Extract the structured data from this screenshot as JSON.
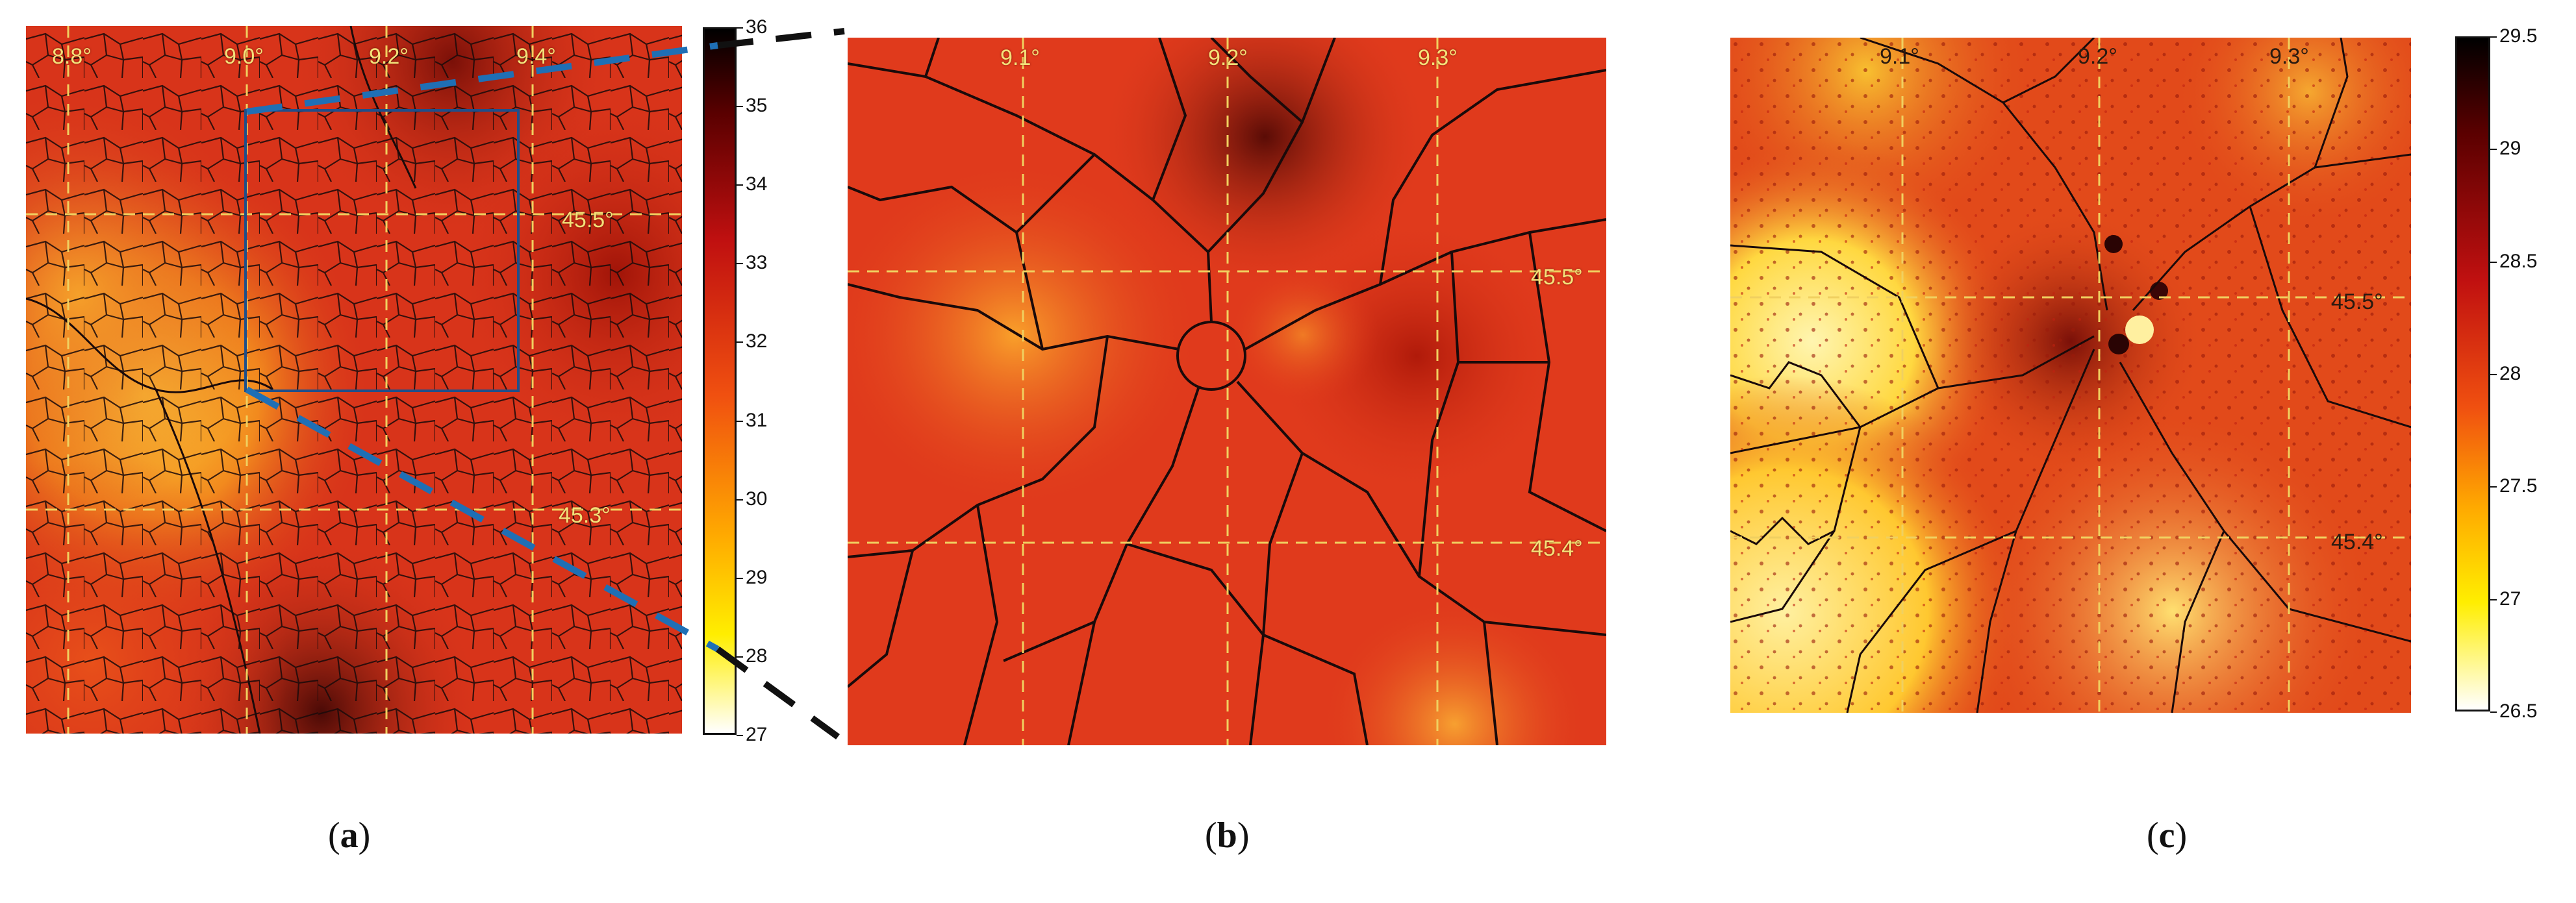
{
  "panels": {
    "a": {
      "caption_open": "(",
      "caption_letter": "a",
      "caption_close": ")",
      "lon_labels": [
        "8.8°",
        "9.0°",
        "9.2°",
        "9.4°"
      ],
      "lat_labels": [
        "45.5°",
        "45.3°"
      ],
      "colorbar": {
        "ticks": [
          "36",
          "35",
          "34",
          "33",
          "32",
          "31",
          "30",
          "29",
          "28",
          "27"
        ],
        "min": 27,
        "max": 36,
        "colors": [
          "#ffffff",
          "#ffee00",
          "#ffaa00",
          "#f05010",
          "#c01010",
          "#5a0000",
          "#000000"
        ]
      }
    },
    "b": {
      "caption_open": "(",
      "caption_letter": "b",
      "caption_close": ")",
      "lon_labels": [
        "9.1°",
        "9.2°",
        "9.3°"
      ],
      "lat_labels": [
        "45.5°",
        "45.4°"
      ]
    },
    "c": {
      "caption_open": "(",
      "caption_letter": "c",
      "caption_close": ")",
      "lon_labels": [
        "9.1°",
        "9.2°",
        "9.3°"
      ],
      "lat_labels": [
        "45.5°",
        "45.4°"
      ],
      "colorbar": {
        "ticks": [
          "29.5",
          "29",
          "28.5",
          "28",
          "27.5",
          "27",
          "26.5"
        ],
        "min": 26.5,
        "max": 29.7,
        "colors": [
          "#ffffff",
          "#ffee00",
          "#ffaa00",
          "#f05010",
          "#c01010",
          "#5a0000",
          "#000000"
        ]
      }
    }
  },
  "colors": {
    "grid": "#f0d060",
    "boundary": "#1a0a0a",
    "zoom": "#1f6fb5"
  }
}
